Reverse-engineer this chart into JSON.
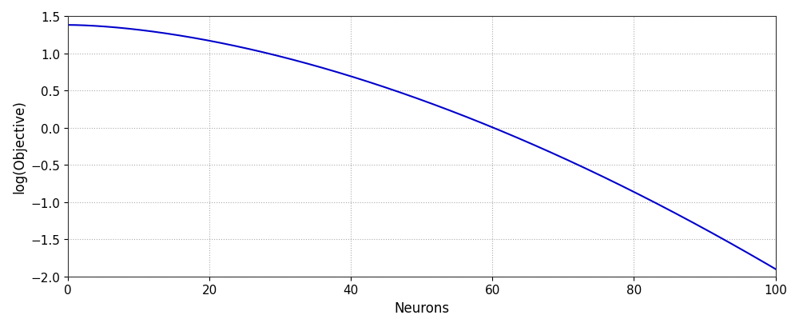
{
  "xlabel": "Neurons",
  "ylabel": "log(Objective)",
  "line_color": "#0000cc",
  "line_width": 1.5,
  "xlim": [
    0,
    100
  ],
  "ylim": [
    -2.0,
    1.5
  ],
  "xticks": [
    0,
    20,
    40,
    60,
    80,
    100
  ],
  "yticks": [
    -2.0,
    -1.5,
    -1.0,
    -0.5,
    0.0,
    0.5,
    1.0,
    1.5
  ],
  "grid_color": "#888888",
  "background_color": "#ffffff",
  "xlabel_fontsize": 12,
  "ylabel_fontsize": 12,
  "tick_fontsize": 11,
  "x_start": 0,
  "x_end": 100,
  "n_points": 1000,
  "curve_a": 1.38,
  "curve_b": 0.001306,
  "curve_power": 1.7
}
